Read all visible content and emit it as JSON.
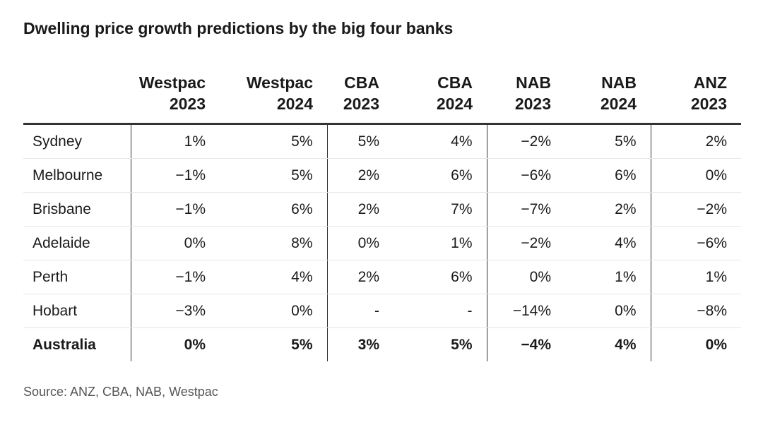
{
  "chart_data": {
    "type": "table",
    "title": "Dwelling price growth predictions by the big four banks",
    "columns": [
      {
        "line1": "Westpac",
        "line2": "2023"
      },
      {
        "line1": "Westpac",
        "line2": "2024"
      },
      {
        "line1": "CBA",
        "line2": "2023"
      },
      {
        "line1": "CBA",
        "line2": "2024"
      },
      {
        "line1": "NAB",
        "line2": "2023"
      },
      {
        "line1": "NAB",
        "line2": "2024"
      },
      {
        "line1": "ANZ",
        "line2": "2023"
      }
    ],
    "rows": [
      {
        "label": "Sydney",
        "values": [
          "1%",
          "5%",
          "5%",
          "4%",
          "−2%",
          "5%",
          "2%"
        ]
      },
      {
        "label": "Melbourne",
        "values": [
          "−1%",
          "5%",
          "2%",
          "6%",
          "−6%",
          "6%",
          "0%"
        ]
      },
      {
        "label": "Brisbane",
        "values": [
          "−1%",
          "6%",
          "2%",
          "7%",
          "−7%",
          "2%",
          "−2%"
        ]
      },
      {
        "label": "Adelaide",
        "values": [
          "0%",
          "8%",
          "0%",
          "1%",
          "−2%",
          "4%",
          "−6%"
        ]
      },
      {
        "label": "Perth",
        "values": [
          "−1%",
          "4%",
          "2%",
          "6%",
          "0%",
          "1%",
          "1%"
        ]
      },
      {
        "label": "Hobart",
        "values": [
          "−3%",
          "0%",
          "-",
          "-",
          "−14%",
          "0%",
          "−8%"
        ]
      },
      {
        "label": "Australia",
        "values": [
          "0%",
          "5%",
          "3%",
          "5%",
          "−4%",
          "4%",
          "0%"
        ]
      }
    ],
    "source": "Source: ANZ, CBA, NAB, Westpac"
  }
}
